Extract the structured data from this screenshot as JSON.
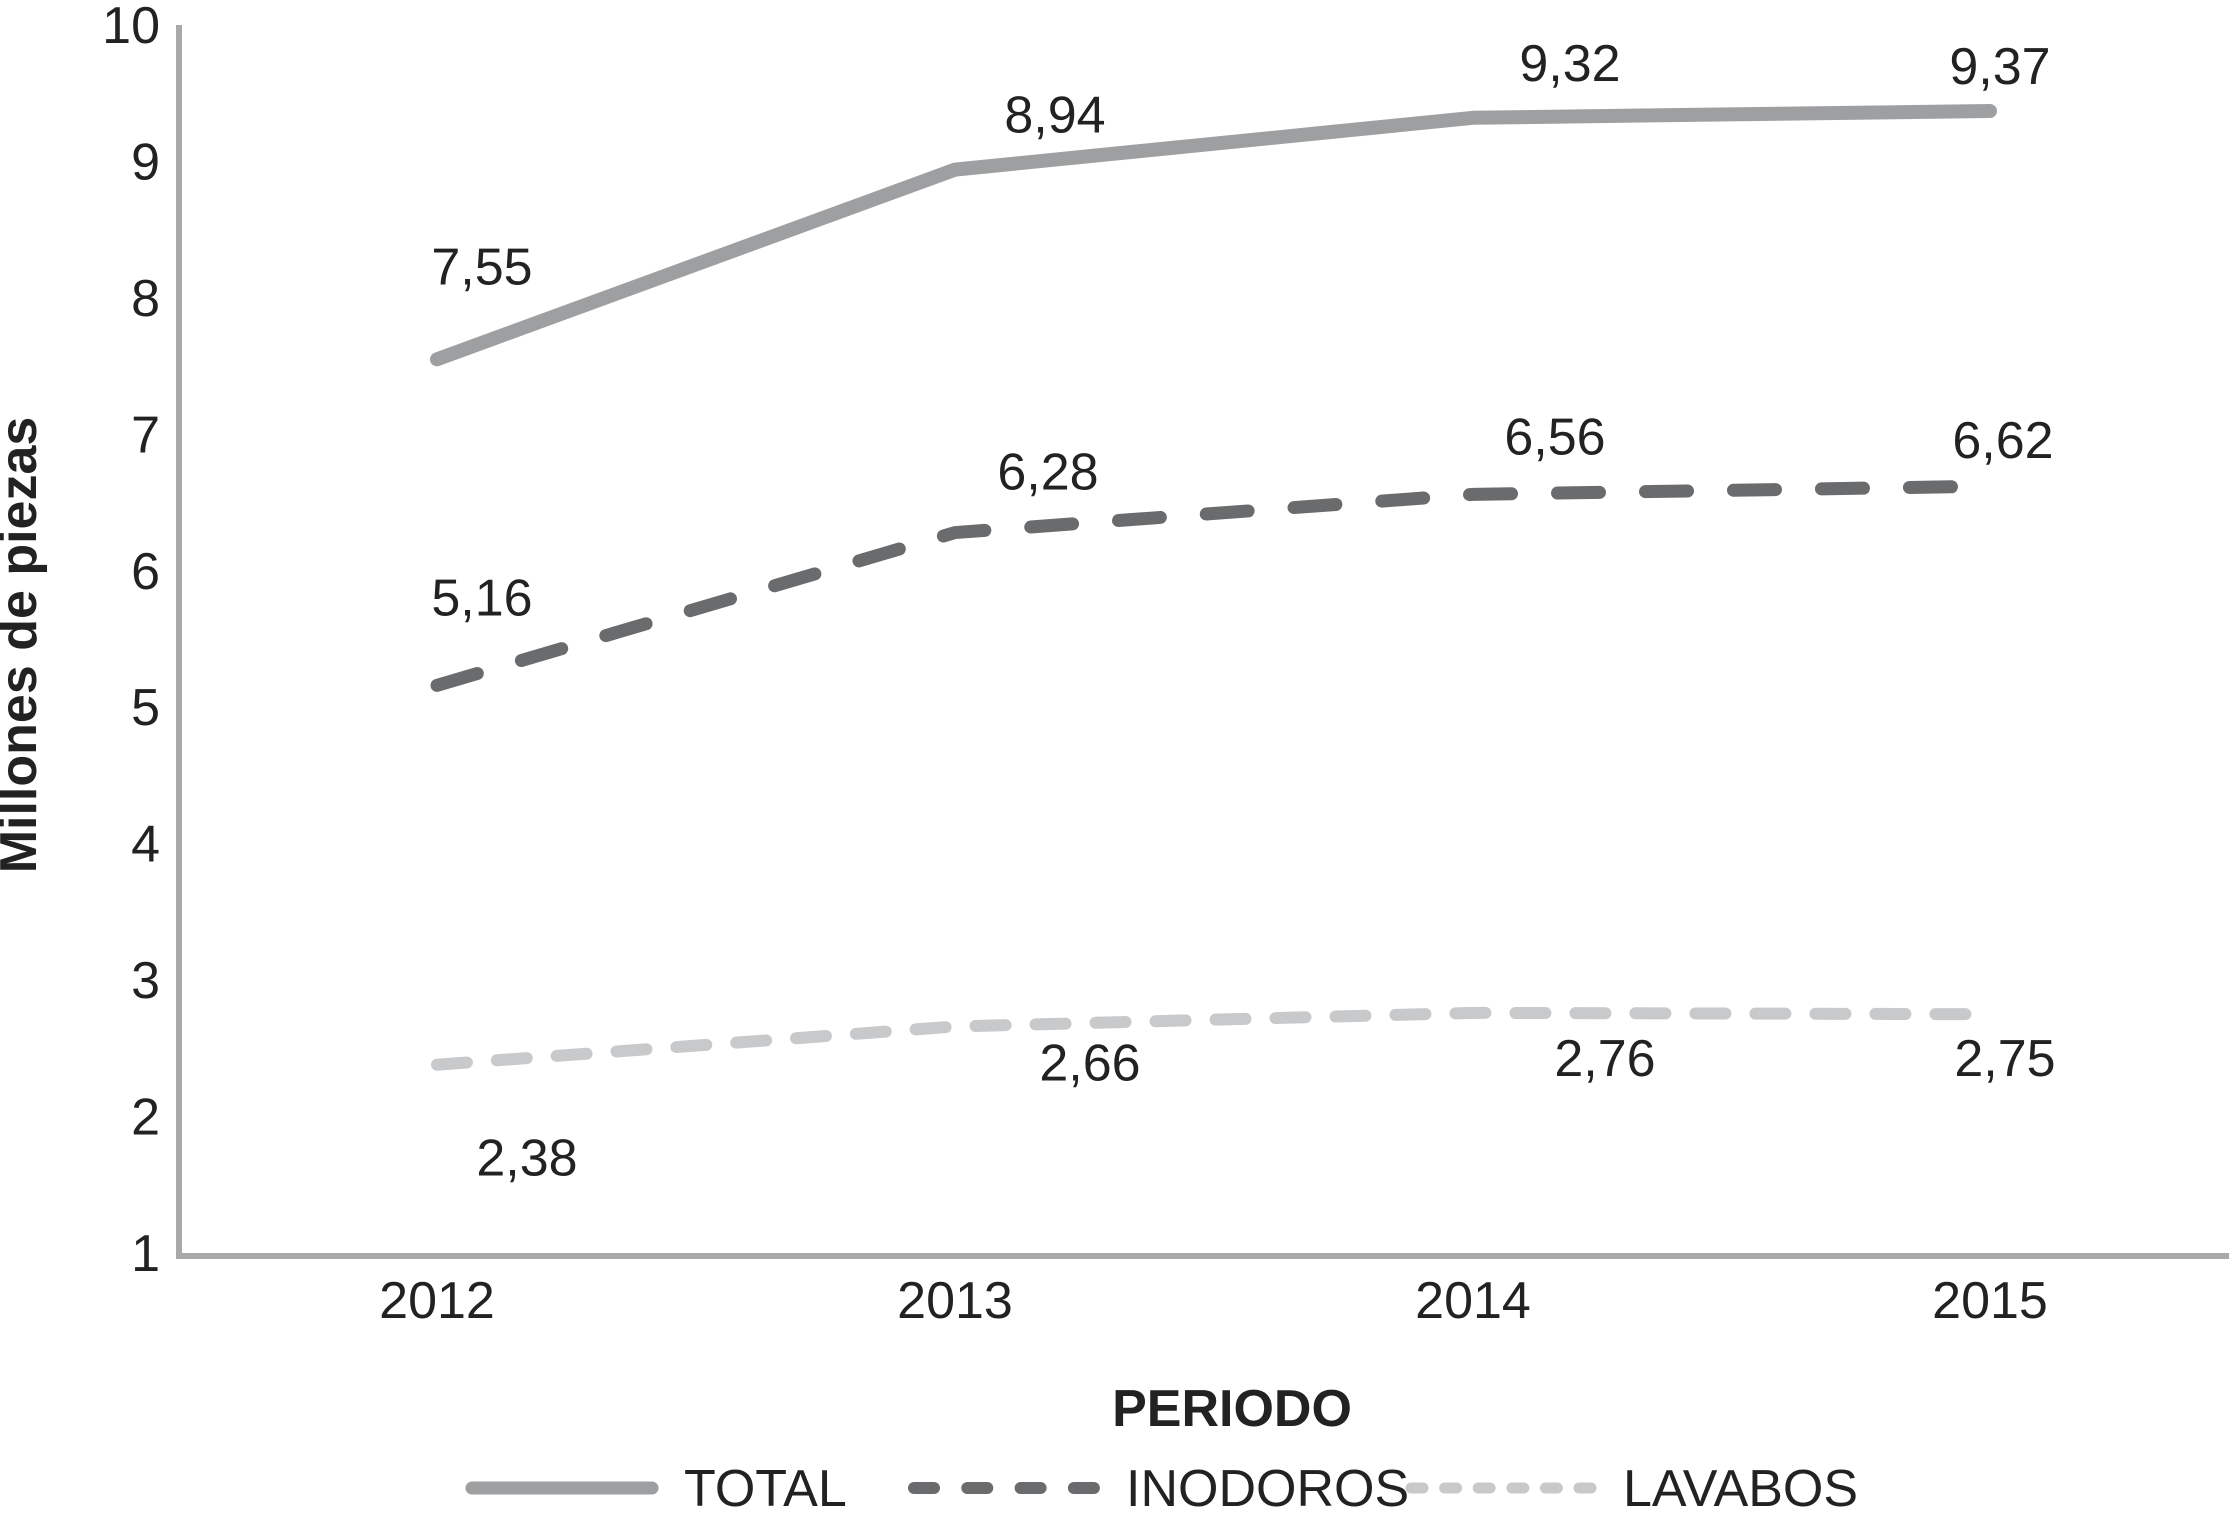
{
  "chart_data": {
    "type": "line",
    "title": "",
    "categories": [
      "2012",
      "2013",
      "2014",
      "2015"
    ],
    "series": [
      {
        "name": "TOTAL",
        "values": [
          7.55,
          8.94,
          9.32,
          9.37
        ],
        "labels": [
          "7,55",
          "8,94",
          "9,32",
          "9,37"
        ],
        "color": "#9e9fa1",
        "style": "solid"
      },
      {
        "name": "INODOROS",
        "values": [
          5.16,
          6.28,
          6.56,
          6.62
        ],
        "labels": [
          "5,16",
          "6,28",
          "6,56",
          "6,62"
        ],
        "color": "#6a6b6d",
        "style": "dashed"
      },
      {
        "name": "LAVABOS",
        "values": [
          2.38,
          2.66,
          2.76,
          2.75
        ],
        "labels": [
          "2,38",
          "2,66",
          "2,76",
          "2,75"
        ],
        "color": "#c8c9cb",
        "style": "fine-dashed"
      }
    ],
    "xlabel": "PERIODO",
    "ylabel": "Millones de piezas",
    "ylim": [
      1,
      10
    ],
    "yticks": [
      1,
      2,
      3,
      4,
      5,
      6,
      7,
      8,
      9,
      10
    ],
    "grid": false,
    "legend_position": "bottom",
    "axis_color": "#a7a9ab",
    "text_color": "#222222",
    "decimal_separator": ","
  }
}
